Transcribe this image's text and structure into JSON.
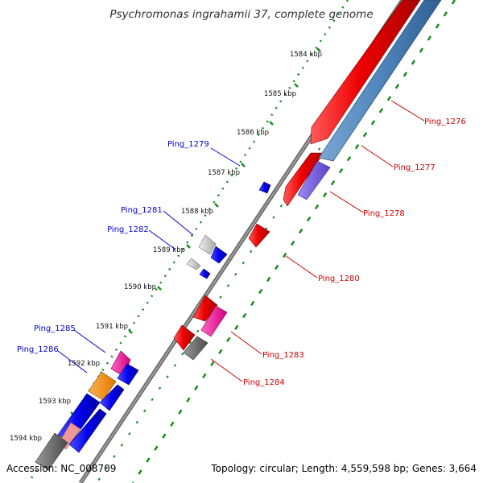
{
  "title": "Psychromonas ingrahamii 37, complete genome",
  "accession_label": "Accession: NC_008709",
  "summary_label": "Topology: circular; Length: 4,559,598 bp; Genes: 3,664",
  "backbone_color": "#888888",
  "ruler": [
    {
      "label": "1584 kbp"
    },
    {
      "label": "1585 kbp"
    },
    {
      "label": "1586 kbp"
    },
    {
      "label": "1587 kbp"
    },
    {
      "label": "1588 kbp"
    },
    {
      "label": "1589 kbp"
    },
    {
      "label": "1590 kbp"
    },
    {
      "label": "1591 kbp"
    },
    {
      "label": "1592 kbp"
    },
    {
      "label": "1593 kbp"
    },
    {
      "label": "1594 kbp"
    }
  ],
  "gene_labels": [
    {
      "name": "Ping_1276",
      "color": "#cc0000"
    },
    {
      "name": "Ping_1277",
      "color": "#cc0000"
    },
    {
      "name": "Ping_1278",
      "color": "#cc0000"
    },
    {
      "name": "Ping_1279",
      "color": "#0000cc"
    },
    {
      "name": "Ping_1280",
      "color": "#cc0000"
    },
    {
      "name": "Ping_1281",
      "color": "#0000cc"
    },
    {
      "name": "Ping_1282",
      "color": "#0000cc"
    },
    {
      "name": "Ping_1283",
      "color": "#cc0000"
    },
    {
      "name": "Ping_1284",
      "color": "#cc0000"
    },
    {
      "name": "Ping_1285",
      "color": "#0000cc"
    },
    {
      "name": "Ping_1286",
      "color": "#0000cc"
    }
  ]
}
